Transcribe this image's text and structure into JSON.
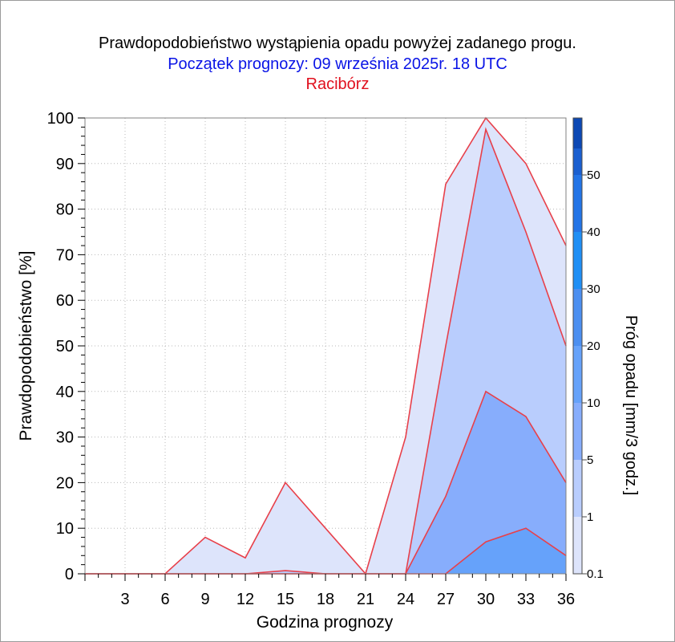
{
  "chart_data": {
    "type": "area",
    "title": "Prawdopodobieństwo wystąpienia opadu powyżej zadanego progu.",
    "subtitle": "Początek prognozy: 09 września 2025r. 18 UTC",
    "location": "Racibórz",
    "xlabel": "Godzina prognozy",
    "ylabel": "Prawdopodobieństwo [%]",
    "x": [
      0,
      3,
      6,
      9,
      12,
      15,
      18,
      21,
      24,
      27,
      30,
      33,
      36
    ],
    "x_ticks": [
      3,
      6,
      9,
      12,
      15,
      18,
      21,
      24,
      27,
      30,
      33,
      36
    ],
    "xlim": [
      0,
      36
    ],
    "ylim": [
      0,
      100
    ],
    "y_ticks": [
      0,
      10,
      20,
      30,
      40,
      50,
      60,
      70,
      80,
      90,
      100
    ],
    "grid": true,
    "series": [
      {
        "threshold": 0.1,
        "color": "#dde4fb",
        "values": [
          0,
          0,
          0,
          8,
          3.5,
          20,
          10,
          0,
          30,
          85.5,
          100,
          90,
          72
        ]
      },
      {
        "threshold": 1,
        "color": "#b9cdfd",
        "values": [
          0,
          0,
          0,
          0,
          0,
          0.7,
          0,
          0,
          0,
          50,
          97.5,
          75,
          50
        ]
      },
      {
        "threshold": 5,
        "color": "#87adfc",
        "values": [
          0,
          0,
          0,
          0,
          0,
          0,
          0,
          0,
          0,
          17,
          40,
          34.5,
          20
        ]
      },
      {
        "threshold": 10,
        "color": "#66a2fa",
        "values": [
          0,
          0,
          0,
          0,
          0,
          0,
          0,
          0,
          0,
          0,
          7,
          10,
          4
        ]
      }
    ],
    "line_color": "#e8404a",
    "colorbar": {
      "label": "Próg opadu [mm/3 godz.]",
      "ticks": [
        "0.1",
        "1",
        "5",
        "10",
        "20",
        "30",
        "40",
        "50"
      ],
      "colors": [
        "#dde4fb",
        "#b9cdfd",
        "#87adfc",
        "#66a2fa",
        "#4c8ff0",
        "#1f8ff5",
        "#2374e6",
        "#1a5fd0",
        "#0c48b4"
      ]
    }
  }
}
